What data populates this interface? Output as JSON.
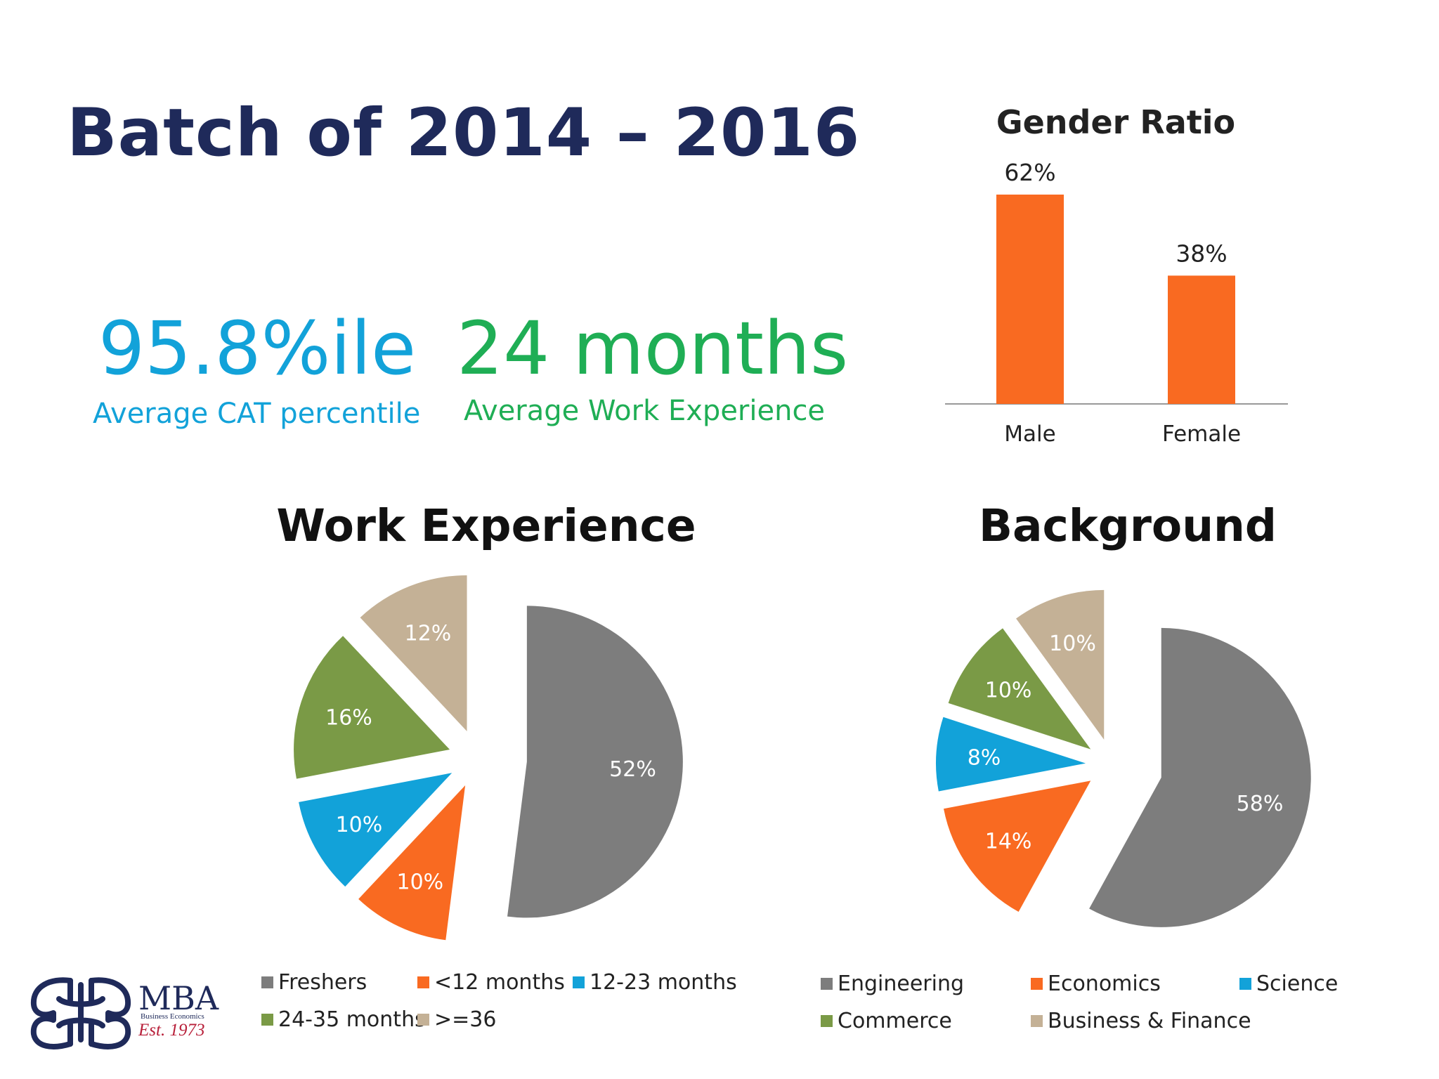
{
  "slide": {
    "title": "Batch of 2014 – 2016"
  },
  "stats": {
    "cat": {
      "value": "95.8%ile",
      "label": "Average CAT percentile"
    },
    "work": {
      "value": "24 months",
      "label": "Average Work Experience"
    }
  },
  "colors": {
    "title": "#1f2a5a",
    "cat": "#12a2d9",
    "work": "#1fae55",
    "orange": "#f96a21",
    "gray": "#7d7d7d",
    "blue": "#12a2d9",
    "green": "#7a9a46",
    "tan": "#c4b196"
  },
  "logo": {
    "name": "MBA",
    "subtitle": "Business Economics",
    "established": "Est. 1973"
  },
  "chart_data": [
    {
      "id": "gender",
      "type": "bar",
      "title": "Gender Ratio",
      "categories": [
        "Male",
        "Female"
      ],
      "values": [
        62,
        38
      ],
      "labels": [
        "62%",
        "38%"
      ],
      "color": "#f96a21",
      "ylim": [
        0,
        62
      ]
    },
    {
      "id": "work-experience",
      "type": "pie",
      "title": "Work Experience",
      "categories": [
        "Freshers",
        "<12 months",
        "12-23 months",
        "24-35 months",
        ">=36"
      ],
      "values": [
        52,
        10,
        10,
        16,
        12
      ],
      "labels": [
        "52%",
        "10%",
        "10%",
        "16%",
        "12%"
      ],
      "colors": [
        "#7d7d7d",
        "#f96a21",
        "#12a2d9",
        "#7a9a46",
        "#c4b196"
      ],
      "legend": "bottom"
    },
    {
      "id": "background",
      "type": "pie",
      "title": "Background",
      "categories": [
        "Engineering",
        "Economics",
        "Science",
        "Commerce",
        "Business & Finance"
      ],
      "values": [
        58,
        14,
        8,
        10,
        10
      ],
      "labels": [
        "58%",
        "14%",
        "8%",
        "10%",
        "10%"
      ],
      "colors": [
        "#7d7d7d",
        "#f96a21",
        "#12a2d9",
        "#7a9a46",
        "#c4b196"
      ],
      "legend": "bottom"
    }
  ]
}
